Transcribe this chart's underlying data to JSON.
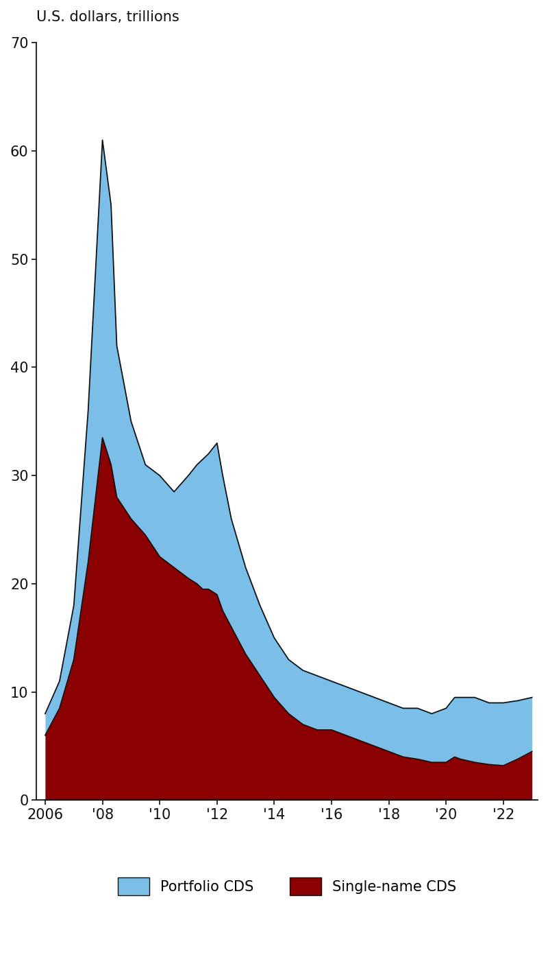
{
  "ylabel": "U.S. dollars, trillions",
  "ylim": [
    0,
    70
  ],
  "yticks": [
    0,
    10,
    20,
    30,
    40,
    50,
    60,
    70
  ],
  "xtick_labels": [
    "2006",
    "'08",
    "'10",
    "'12",
    "'14",
    "'16",
    "'18",
    "'20",
    "'22"
  ],
  "xtick_positions": [
    2006,
    2008,
    2010,
    2012,
    2014,
    2016,
    2018,
    2020,
    2022
  ],
  "xlim": [
    2005.7,
    2023.2
  ],
  "portfolio_color": "#7BBEE8",
  "single_name_color": "#8B0000",
  "line_color": "#111111",
  "background_color": "#ffffff",
  "legend_portfolio": "Portfolio CDS",
  "legend_single": "Single-name CDS",
  "years": [
    2006.0,
    2006.5,
    2007.0,
    2007.5,
    2008.0,
    2008.3,
    2008.5,
    2009.0,
    2009.5,
    2010.0,
    2010.5,
    2011.0,
    2011.3,
    2011.5,
    2011.7,
    2012.0,
    2012.2,
    2012.5,
    2013.0,
    2013.5,
    2014.0,
    2014.5,
    2015.0,
    2015.5,
    2016.0,
    2016.5,
    2017.0,
    2017.5,
    2018.0,
    2018.5,
    2019.0,
    2019.5,
    2020.0,
    2020.3,
    2020.5,
    2021.0,
    2021.5,
    2022.0,
    2022.5,
    2023.0
  ],
  "total_notional": [
    8.0,
    11.0,
    18.0,
    36.0,
    61.0,
    55.0,
    42.0,
    35.0,
    31.0,
    30.0,
    28.5,
    30.0,
    31.0,
    31.5,
    32.0,
    33.0,
    30.0,
    26.0,
    21.5,
    18.0,
    15.0,
    13.0,
    12.0,
    11.5,
    11.0,
    10.5,
    10.0,
    9.5,
    9.0,
    8.5,
    8.5,
    8.0,
    8.5,
    9.5,
    9.5,
    9.5,
    9.0,
    9.0,
    9.2,
    9.5
  ],
  "single_name": [
    6.0,
    8.5,
    13.0,
    22.0,
    33.5,
    31.0,
    28.0,
    26.0,
    24.5,
    22.5,
    21.5,
    20.5,
    20.0,
    19.5,
    19.5,
    19.0,
    17.5,
    16.0,
    13.5,
    11.5,
    9.5,
    8.0,
    7.0,
    6.5,
    6.5,
    6.0,
    5.5,
    5.0,
    4.5,
    4.0,
    3.8,
    3.5,
    3.5,
    4.0,
    3.8,
    3.5,
    3.3,
    3.2,
    3.8,
    4.5
  ]
}
